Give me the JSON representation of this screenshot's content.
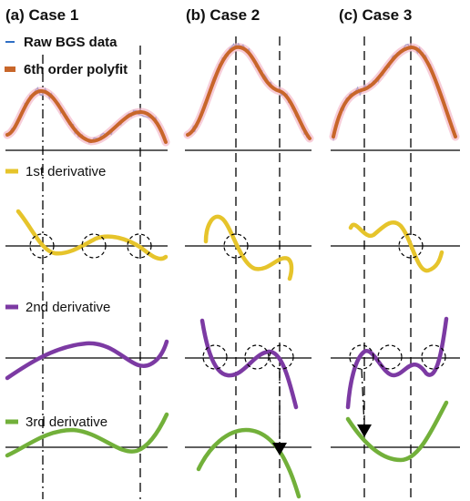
{
  "panels": [
    {
      "title": "(a) Case 1"
    },
    {
      "title": "(b) Case 2"
    },
    {
      "title": "(c) Case 3"
    }
  ],
  "legend": {
    "raw_label": "Raw BGS data",
    "fit_label": "6th order polyfit"
  },
  "row_labels": {
    "d1": "1st derivative",
    "d2": "2nd derivative",
    "d3": "3rd derivative"
  },
  "colors": {
    "raw": "#2f6fc4",
    "fit": "#c8662a",
    "fit_halo": "#f3b8c9",
    "d1": "#e6c42b",
    "d2": "#7c3aa3",
    "d3": "#72b03a",
    "axis": "#000000"
  }
}
